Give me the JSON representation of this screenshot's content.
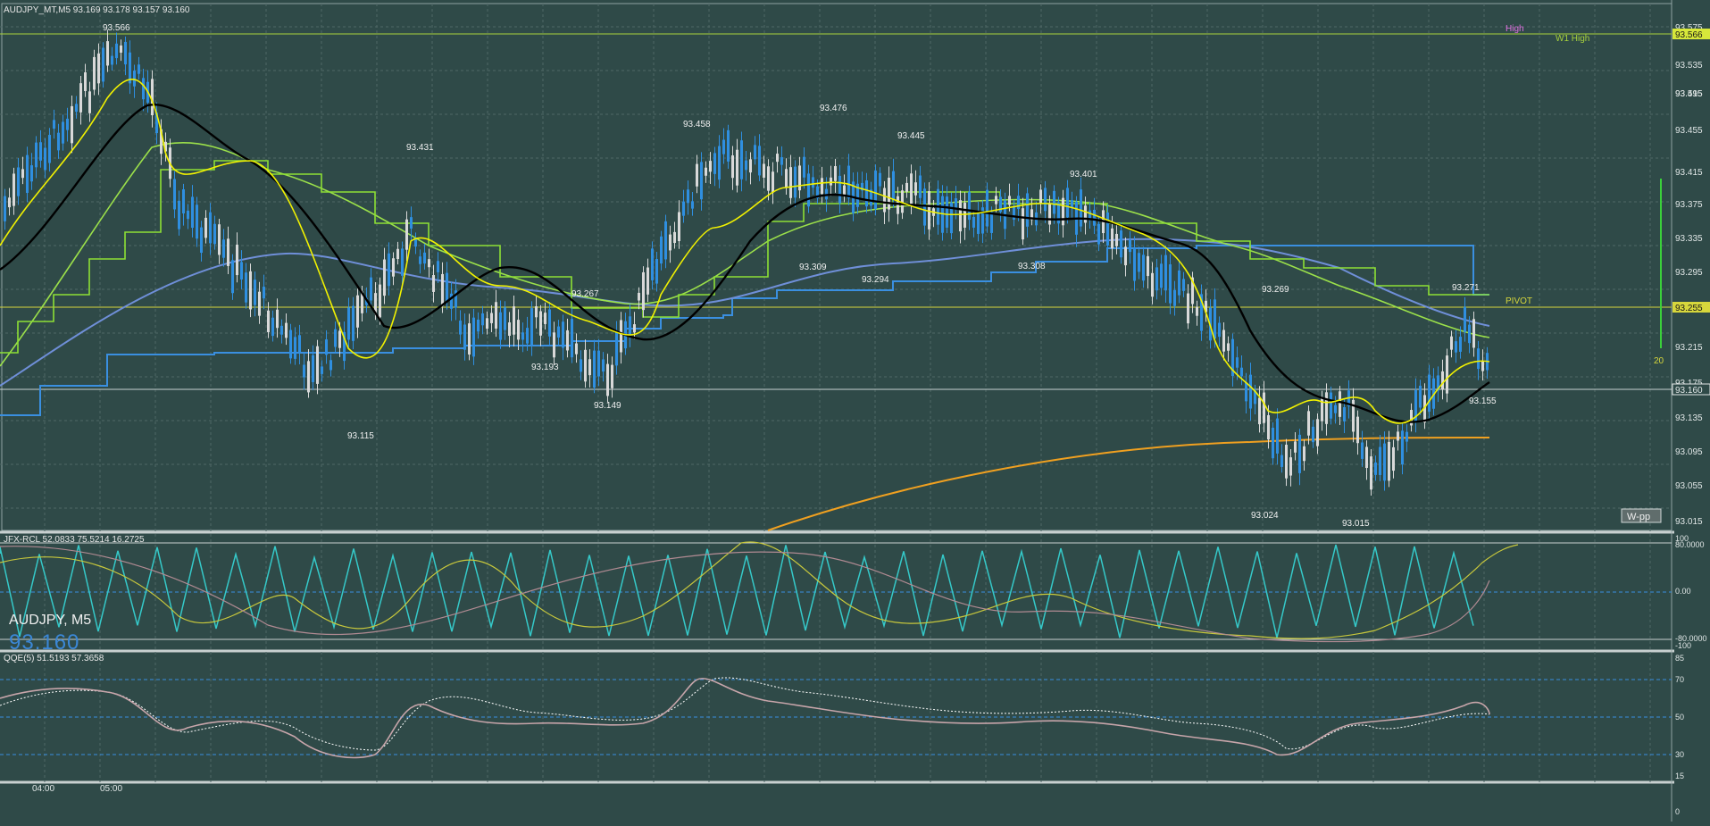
{
  "header": {
    "symbol_line": "AUDJPY_MT,M5  93.169 93.178 93.157 93.160"
  },
  "overlay": {
    "symbol": "AUDJPY, M5",
    "price": "93.160",
    "wpp_button": "W-pp"
  },
  "levels": {
    "high_label": "High",
    "w1_high_label": "W1 High",
    "pivot_label": "PIVOT",
    "high_price": "93.566",
    "pivot_price": "93.255",
    "current_price": "93.160",
    "side_count": "20"
  },
  "price_axis": {
    "ticks": [
      "93.575",
      "93.566",
      "93.535",
      "93.515",
      "93.495",
      "93.455",
      "93.415",
      "93.375",
      "93.335",
      "93.295",
      "93.255",
      "93.215",
      "93.175",
      "93.160",
      "93.135",
      "93.095",
      "93.055",
      "93.015"
    ]
  },
  "annotations": [
    "93.566",
    "93.431",
    "93.458",
    "93.476",
    "93.445",
    "93.401",
    "93.309",
    "93.294",
    "93.308",
    "93.267",
    "93.193",
    "93.149",
    "93.115",
    "93.269",
    "93.271",
    "93.155",
    "93.024",
    "93.015"
  ],
  "indicator1": {
    "header": "JFX-RCL  52.0833 75.5214 16.2725",
    "axis": [
      "100",
      "80.0000",
      "0.00",
      "-80.0000",
      "-100"
    ]
  },
  "indicator2": {
    "header": "QQE(5) 51.5193 57.3658",
    "axis": [
      "85",
      "70",
      "50",
      "30",
      "15",
      "0"
    ]
  },
  "time_axis": [
    "04:00",
    "05:00"
  ],
  "colors": {
    "background": "#2f4a48",
    "bull_candle": "#d9d9d9",
    "bear_candle": "#2f8fe0",
    "yellow_line": "#f2f200",
    "black_line": "#000000",
    "green_line": "#9be04a",
    "blue_line": "#3a8fe0",
    "orange_line": "#f0a020",
    "cyan_line": "#35c9c9"
  }
}
